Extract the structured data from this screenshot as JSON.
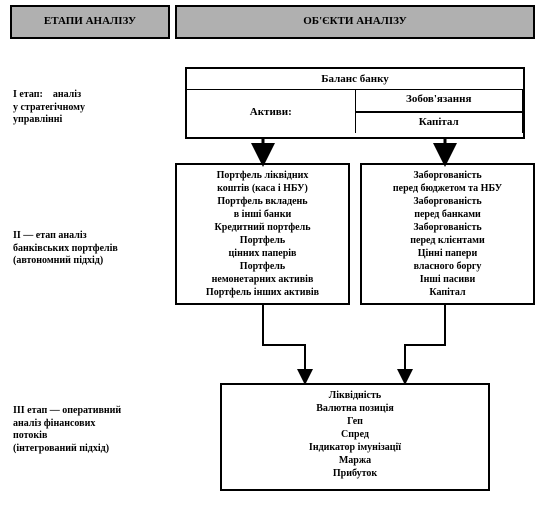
{
  "header": {
    "stages_title": "ЕТАПИ АНАЛІЗУ",
    "objects_title": "ОБ'ЄКТИ АНАЛІЗУ"
  },
  "stage1": {
    "label": "I етап:    аналіз\nу стратегічному\nуправлінні",
    "box_title": "Баланс банку",
    "assets": "Активи:",
    "liab": "Зобов'язання",
    "capital": "Капітал"
  },
  "stage2": {
    "label": "II — етап аналіз\nбанківських портфелів\n(автономний підхід)",
    "left_items": [
      "Портфель ліквідних",
      "коштів (каса і НБУ)",
      "Портфель вкладень",
      "в інші банки",
      "Кредитний портфель",
      "Портфель",
      "цінних паперів",
      "Портфель",
      "немонетарних активів",
      "Портфель інших активів"
    ],
    "right_items": [
      "Заборгованість",
      "перед бюджетом та НБУ",
      "Заборгованість",
      "перед банками",
      "Заборгованість",
      "перед клієнтами",
      "Цінні папери",
      "власного боргу",
      "Інші пасиви",
      "Капітал"
    ]
  },
  "stage3": {
    "label": "III етап — оперативний\nаналіз фінансових\nпотоків\n(інтегрований підхід)",
    "items": [
      "Ліквідність",
      "Валютна позиція",
      "Геп",
      "Спред",
      "Індикатор імунізації",
      "Маржа",
      "Прибуток"
    ]
  },
  "style": {
    "header_bg": "#b0b0b0",
    "border_color": "#000000",
    "page_bg": "#ffffff",
    "font": "Times New Roman",
    "arrow_stroke": "#000000",
    "arrow_width": 2
  }
}
